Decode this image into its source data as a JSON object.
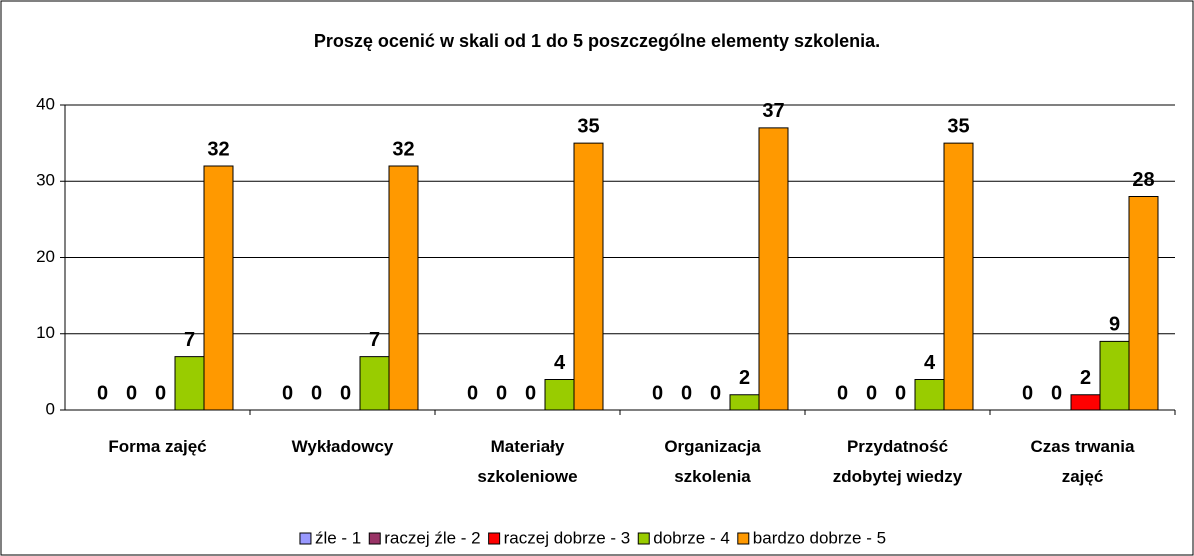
{
  "chart_data": {
    "type": "bar",
    "title": "Proszę ocenić w skali od 1 do 5 poszczególne elementy szkolenia.",
    "categories": [
      [
        "Forma zajęć"
      ],
      [
        "Wykładowcy"
      ],
      [
        "Materiały",
        "szkoleniowe"
      ],
      [
        "Organizacja",
        "szkolenia"
      ],
      [
        "Przydatność",
        "zdobytej wiedzy"
      ],
      [
        "Czas trwania",
        "zajęć"
      ]
    ],
    "series": [
      {
        "name": "źle - 1",
        "color": "#9999ff",
        "values": [
          0,
          0,
          0,
          0,
          0,
          0
        ]
      },
      {
        "name": "raczej źle - 2",
        "color": "#993366",
        "values": [
          0,
          0,
          0,
          0,
          0,
          0
        ]
      },
      {
        "name": "raczej dobrze - 3",
        "color": "#ff0000",
        "values": [
          0,
          0,
          0,
          0,
          0,
          2
        ]
      },
      {
        "name": "dobrze - 4",
        "color": "#99cc00",
        "values": [
          7,
          7,
          4,
          2,
          4,
          9
        ]
      },
      {
        "name": "bardzo dobrze - 5",
        "color": "#ff9900",
        "values": [
          32,
          32,
          35,
          37,
          35,
          28
        ]
      }
    ],
    "ylim": [
      0,
      40
    ],
    "yticks": [
      0,
      10,
      20,
      30,
      40
    ],
    "grid": true,
    "legend": "bottom"
  }
}
